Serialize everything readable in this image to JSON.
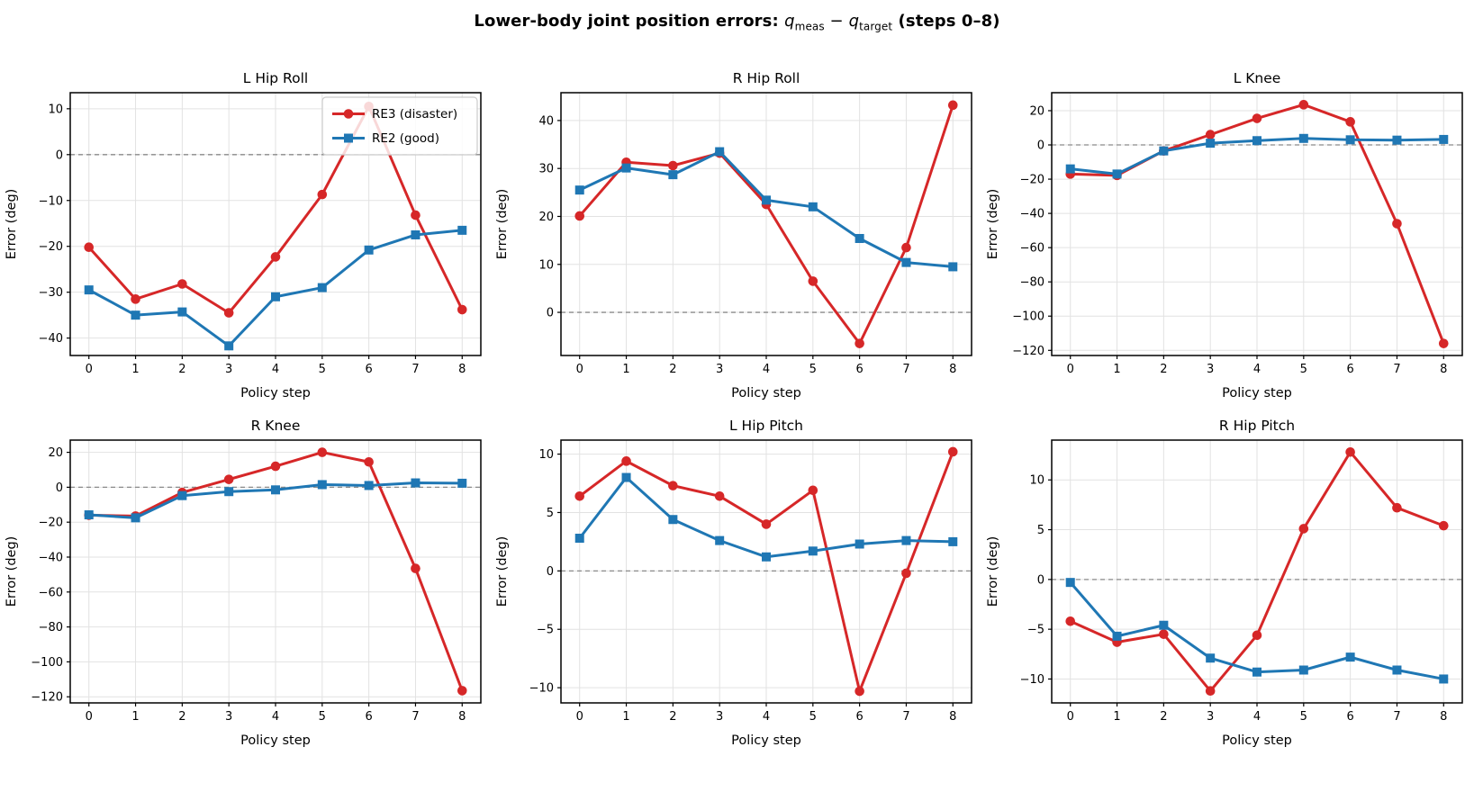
{
  "header": {
    "title_prefix": "Lower-body joint position errors: ",
    "title_math_q1": "q",
    "title_math_sub1": "meas",
    "title_math_minus": " − ",
    "title_math_q2": "q",
    "title_math_sub2": "target",
    "title_suffix": " (steps 0–8)"
  },
  "colors": {
    "re3": "#d62728",
    "re2": "#1f77b4",
    "grid": "#e2e2e2",
    "zero_line": "#8a8a8a",
    "spine": "#000000",
    "legend_border": "#cccccc",
    "legend_bg": "#ffffff"
  },
  "legend": {
    "entries": [
      {
        "label": "RE3 (disaster)",
        "color": "#d62728",
        "marker": "circle"
      },
      {
        "label": "RE2 (good)",
        "color": "#1f77b4",
        "marker": "square"
      }
    ]
  },
  "chart_data": [
    {
      "type": "line",
      "title": "L Hip Roll",
      "xlabel": "Policy step",
      "ylabel": "Error (deg)",
      "x": [
        0,
        1,
        2,
        3,
        4,
        5,
        6,
        7,
        8
      ],
      "xlim": [
        -0.4,
        8.4
      ],
      "ylim": [
        -43.8,
        13.5
      ],
      "yticks": [
        10,
        0,
        -10,
        -20,
        -30,
        -40
      ],
      "grid": true,
      "zero_line": true,
      "show_legend": true,
      "legend_position": "upper right",
      "series": [
        {
          "name": "RE3 (disaster)",
          "values": [
            -20.2,
            -31.5,
            -28.2,
            -34.5,
            -22.3,
            -8.7,
            10.5,
            -13.2,
            -33.8
          ]
        },
        {
          "name": "RE2 (good)",
          "values": [
            -29.5,
            -35.0,
            -34.3,
            -41.7,
            -31.0,
            -29.0,
            -20.8,
            -17.5,
            -16.5
          ]
        }
      ]
    },
    {
      "type": "line",
      "title": "R Hip Roll",
      "xlabel": "Policy step",
      "ylabel": "Error (deg)",
      "x": [
        0,
        1,
        2,
        3,
        4,
        5,
        6,
        7,
        8
      ],
      "xlim": [
        -0.4,
        8.4
      ],
      "ylim": [
        -9.0,
        45.8
      ],
      "yticks": [
        40,
        30,
        20,
        10,
        0
      ],
      "grid": true,
      "zero_line": true,
      "show_legend": false,
      "series": [
        {
          "name": "RE3 (disaster)",
          "values": [
            20.1,
            31.3,
            30.6,
            33.2,
            22.5,
            6.5,
            -6.5,
            13.5,
            43.2
          ]
        },
        {
          "name": "RE2 (good)",
          "values": [
            25.5,
            30.1,
            28.7,
            33.5,
            23.4,
            22.0,
            15.4,
            10.4,
            9.5
          ]
        }
      ]
    },
    {
      "type": "line",
      "title": "L Knee",
      "xlabel": "Policy step",
      "ylabel": "Error (deg)",
      "x": [
        0,
        1,
        2,
        3,
        4,
        5,
        6,
        7,
        8
      ],
      "xlim": [
        -0.4,
        8.4
      ],
      "ylim": [
        -123.0,
        30.5
      ],
      "yticks": [
        20,
        0,
        -20,
        -40,
        -60,
        -80,
        -100,
        -120
      ],
      "grid": true,
      "zero_line": true,
      "show_legend": false,
      "series": [
        {
          "name": "RE3 (disaster)",
          "values": [
            -17.0,
            -17.8,
            -3.5,
            6.0,
            15.5,
            23.5,
            13.5,
            -46.0,
            -116.0
          ]
        },
        {
          "name": "RE2 (good)",
          "values": [
            -14.0,
            -17.0,
            -3.5,
            1.0,
            2.5,
            3.8,
            3.0,
            2.8,
            3.2
          ]
        }
      ]
    },
    {
      "type": "line",
      "title": "R Knee",
      "xlabel": "Policy step",
      "ylabel": "Error (deg)",
      "x": [
        0,
        1,
        2,
        3,
        4,
        5,
        6,
        7,
        8
      ],
      "xlim": [
        -0.4,
        8.4
      ],
      "ylim": [
        -123.5,
        27.0
      ],
      "yticks": [
        20,
        0,
        -20,
        -40,
        -60,
        -80,
        -100,
        -120
      ],
      "grid": true,
      "zero_line": true,
      "show_legend": false,
      "series": [
        {
          "name": "RE3 (disaster)",
          "values": [
            -16.0,
            -16.5,
            -3.0,
            4.5,
            12.0,
            20.0,
            14.5,
            -46.5,
            -116.5
          ]
        },
        {
          "name": "RE2 (good)",
          "values": [
            -15.8,
            -17.5,
            -4.8,
            -2.5,
            -1.5,
            1.5,
            1.0,
            2.5,
            2.3
          ]
        }
      ]
    },
    {
      "type": "line",
      "title": "L Hip Pitch",
      "xlabel": "Policy step",
      "ylabel": "Error (deg)",
      "x": [
        0,
        1,
        2,
        3,
        4,
        5,
        6,
        7,
        8
      ],
      "xlim": [
        -0.4,
        8.4
      ],
      "ylim": [
        -11.3,
        11.2
      ],
      "yticks": [
        10,
        5,
        0,
        -5,
        -10
      ],
      "grid": true,
      "zero_line": true,
      "show_legend": false,
      "series": [
        {
          "name": "RE3 (disaster)",
          "values": [
            6.4,
            9.4,
            7.3,
            6.4,
            4.0,
            6.9,
            -10.3,
            -0.2,
            10.2
          ]
        },
        {
          "name": "RE2 (good)",
          "values": [
            2.8,
            8.0,
            4.4,
            2.6,
            1.2,
            1.7,
            2.3,
            2.6,
            2.5
          ]
        }
      ]
    },
    {
      "type": "line",
      "title": "R Hip Pitch",
      "xlabel": "Policy step",
      "ylabel": "Error (deg)",
      "x": [
        0,
        1,
        2,
        3,
        4,
        5,
        6,
        7,
        8
      ],
      "xlim": [
        -0.4,
        8.4
      ],
      "ylim": [
        -12.4,
        14.0
      ],
      "yticks": [
        10,
        5,
        0,
        -5,
        -10
      ],
      "grid": true,
      "zero_line": true,
      "show_legend": false,
      "series": [
        {
          "name": "RE3 (disaster)",
          "values": [
            -4.2,
            -6.3,
            -5.5,
            -11.2,
            -5.6,
            5.1,
            12.8,
            7.2,
            5.4
          ]
        },
        {
          "name": "RE2 (good)",
          "values": [
            -0.3,
            -5.7,
            -4.6,
            -7.9,
            -9.3,
            -9.1,
            -7.8,
            -9.1,
            -10.0
          ]
        }
      ]
    }
  ]
}
